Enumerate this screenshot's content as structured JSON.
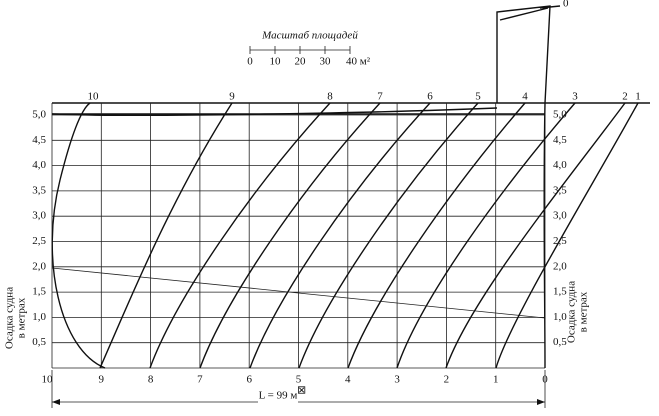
{
  "scale": {
    "title": "Масштаб площадей",
    "ticks": [
      "0",
      "10",
      "20",
      "30",
      "40 м²"
    ]
  },
  "left_axis": {
    "title_line1": "Осадка судна",
    "title_line2": "в метрах",
    "labels": [
      "0,5",
      "1,0",
      "1,5",
      "2,0",
      "2,5",
      "3,0",
      "3,5",
      "4,0",
      "4,5",
      "5,0"
    ]
  },
  "right_axis": {
    "title_line1": "Осадка судна",
    "title_line2": "в метрах",
    "labels": [
      "0,5",
      "1,0",
      "1,5",
      "2,0",
      "2,5",
      "3,0",
      "3,5",
      "4,0",
      "4,5",
      "5,0"
    ]
  },
  "stations_top": [
    "10",
    "9",
    "8",
    "7",
    "6",
    "5",
    "4",
    "3",
    "2",
    "1",
    "0"
  ],
  "stations_bottom": [
    "10",
    "9",
    "8",
    "7",
    "6",
    "5",
    "4",
    "3",
    "2",
    "1",
    "0"
  ],
  "length_label": "L = 99 м"
}
